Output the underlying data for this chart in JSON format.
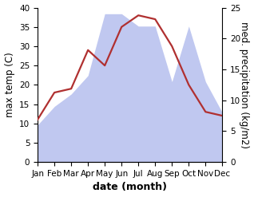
{
  "months": [
    "Jan",
    "Feb",
    "Mar",
    "Apr",
    "May",
    "Jun",
    "Jul",
    "Aug",
    "Sep",
    "Oct",
    "Nov",
    "Dec"
  ],
  "temperature": [
    11,
    18,
    19,
    29,
    25,
    35,
    38,
    37,
    30,
    20,
    13,
    12
  ],
  "precipitation": [
    6,
    9,
    11,
    14,
    24,
    24,
    22,
    22,
    13,
    22,
    13,
    8
  ],
  "temp_color": "#b03030",
  "precip_color_fill": "#c0c8f0",
  "title": "",
  "xlabel": "date (month)",
  "ylabel_left": "max temp (C)",
  "ylabel_right": "med. precipitation (kg/m2)",
  "ylim_left": [
    0,
    40
  ],
  "ylim_right": [
    0,
    25
  ],
  "background_color": "#ffffff",
  "temp_linewidth": 1.6,
  "xlabel_fontsize": 9,
  "ylabel_fontsize": 8.5,
  "tick_fontsize": 7.5
}
